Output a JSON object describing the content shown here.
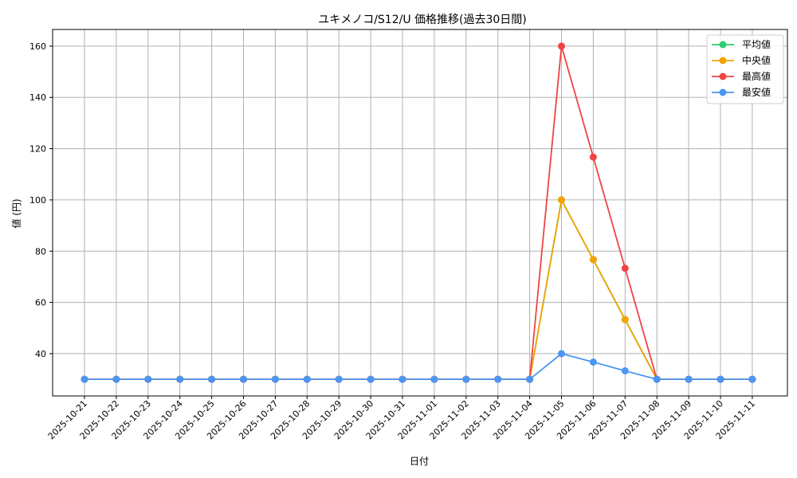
{
  "chart_data": {
    "type": "line",
    "title": "ユキメノコ/S12/U 価格推移(過去30日間)",
    "xlabel": "日付",
    "ylabel": "値 (円)",
    "categories": [
      "2025-10-21",
      "2025-10-22",
      "2025-10-23",
      "2025-10-24",
      "2025-10-25",
      "2025-10-26",
      "2025-10-27",
      "2025-10-28",
      "2025-10-29",
      "2025-10-30",
      "2025-10-31",
      "2025-11-01",
      "2025-11-02",
      "2025-11-03",
      "2025-11-04",
      "2025-11-05",
      "2025-11-06",
      "2025-11-07",
      "2025-11-08",
      "2025-11-09",
      "2025-11-10",
      "2025-11-11"
    ],
    "series": [
      {
        "name": "平均値",
        "color": "#2ecc71",
        "values": [
          30,
          30,
          30,
          30,
          30,
          30,
          30,
          30,
          30,
          30,
          30,
          30,
          30,
          30,
          30,
          100,
          76.7,
          53.3,
          30,
          30,
          30,
          30
        ]
      },
      {
        "name": "中央値",
        "color": "#f5a300",
        "values": [
          30,
          30,
          30,
          30,
          30,
          30,
          30,
          30,
          30,
          30,
          30,
          30,
          30,
          30,
          30,
          100,
          76.7,
          53.3,
          30,
          30,
          30,
          30
        ]
      },
      {
        "name": "最高値",
        "color": "#ef4444",
        "values": [
          30,
          30,
          30,
          30,
          30,
          30,
          30,
          30,
          30,
          30,
          30,
          30,
          30,
          30,
          30,
          160,
          116.7,
          73.3,
          30,
          30,
          30,
          30
        ]
      },
      {
        "name": "最安値",
        "color": "#4b96f3",
        "values": [
          30,
          30,
          30,
          30,
          30,
          30,
          30,
          30,
          30,
          30,
          30,
          30,
          30,
          30,
          30,
          40,
          36.7,
          33.3,
          30,
          30,
          30,
          30
        ]
      }
    ],
    "yticks": [
      40,
      60,
      80,
      100,
      120,
      140,
      160
    ],
    "ylim": [
      23.5,
      166.5
    ],
    "grid": true,
    "legend_position": "top-right"
  }
}
